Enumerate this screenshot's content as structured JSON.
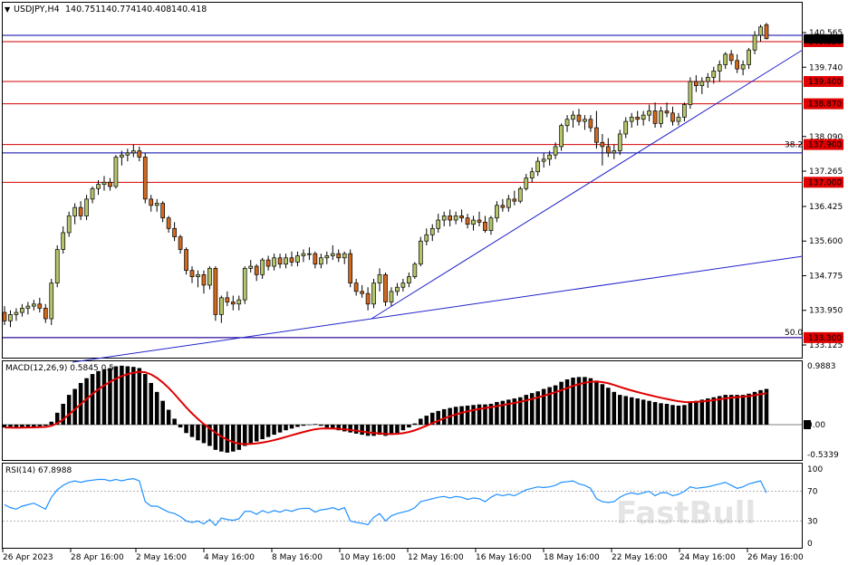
{
  "header": {
    "symbol": "USDJPY,H4",
    "open": "140.751",
    "high": "140.774",
    "low": "140.408",
    "close": "140.418"
  },
  "price_axis": {
    "ticks": [
      "140.565",
      "139.740",
      "138.090",
      "137.265",
      "136.425",
      "135.600",
      "134.775",
      "133.950",
      "133.125"
    ],
    "level_tags": [
      "140.350",
      "139.400",
      "138.870",
      "137.900",
      "137.000",
      "133.300"
    ],
    "fib_labels": [
      "38.2",
      "50.0"
    ]
  },
  "macd": {
    "label": "MACD(12,26,9) 0.5845 0.5",
    "ticks": [
      "0.9883",
      "0.00",
      "-0.5339"
    ]
  },
  "rsi": {
    "label": "RSI(14) 67.8988",
    "ticks": [
      "100",
      "70",
      "30",
      "0"
    ]
  },
  "time_axis": [
    "26 Apr 2023",
    "28 Apr 16:00",
    "2 May 16:00",
    "4 May 16:00",
    "8 May 16:00",
    "10 May 16:00",
    "12 May 16:00",
    "16 May 16:00",
    "18 May 16:00",
    "22 May 16:00",
    "24 May 16:00",
    "26 May 16:00"
  ],
  "watermark": "FastBull",
  "colors": {
    "bull": "#b5c66a",
    "bear": "#d2691e",
    "level_line": "#d40000",
    "level_tag_bg": "#e00000",
    "trend_line": "#2222cc",
    "macd_signal": "#e00000",
    "rsi_line": "#1e90ff"
  },
  "chart_data": {
    "type": "candlestick",
    "y_range": [
      133.125,
      140.85
    ],
    "ohlc": [
      [
        133.9,
        134.05,
        133.6,
        133.7
      ],
      [
        133.7,
        133.95,
        133.55,
        133.85
      ],
      [
        133.85,
        134.0,
        133.7,
        133.9
      ],
      [
        133.9,
        134.1,
        133.8,
        134.0
      ],
      [
        134.0,
        134.15,
        133.85,
        134.05
      ],
      [
        134.05,
        134.2,
        133.95,
        134.1
      ],
      [
        134.1,
        134.25,
        133.9,
        134.0
      ],
      [
        134.0,
        134.1,
        133.65,
        133.75
      ],
      [
        133.75,
        134.7,
        133.6,
        134.6
      ],
      [
        134.6,
        135.5,
        134.5,
        135.4
      ],
      [
        135.4,
        135.95,
        135.3,
        135.8
      ],
      [
        135.8,
        136.3,
        135.7,
        136.2
      ],
      [
        136.2,
        136.5,
        136.0,
        136.4
      ],
      [
        136.4,
        136.55,
        136.1,
        136.2
      ],
      [
        136.2,
        136.7,
        136.1,
        136.6
      ],
      [
        136.6,
        136.9,
        136.5,
        136.85
      ],
      [
        136.85,
        137.05,
        136.7,
        136.95
      ],
      [
        136.95,
        137.15,
        136.8,
        137.0
      ],
      [
        137.0,
        137.1,
        136.8,
        136.9
      ],
      [
        136.9,
        137.65,
        136.85,
        137.6
      ],
      [
        137.6,
        137.75,
        137.4,
        137.65
      ],
      [
        137.65,
        137.8,
        137.5,
        137.7
      ],
      [
        137.7,
        137.9,
        137.6,
        137.75
      ],
      [
        137.75,
        137.85,
        137.5,
        137.6
      ],
      [
        137.6,
        137.7,
        136.5,
        136.6
      ],
      [
        136.6,
        136.7,
        136.3,
        136.45
      ],
      [
        136.45,
        136.6,
        136.3,
        136.5
      ],
      [
        136.5,
        136.55,
        136.05,
        136.15
      ],
      [
        136.15,
        136.2,
        135.8,
        135.9
      ],
      [
        135.9,
        136.05,
        135.6,
        135.7
      ],
      [
        135.7,
        135.75,
        135.3,
        135.4
      ],
      [
        135.4,
        135.45,
        134.8,
        134.9
      ],
      [
        134.9,
        135.0,
        134.6,
        134.75
      ],
      [
        134.75,
        134.9,
        134.5,
        134.8
      ],
      [
        134.8,
        134.9,
        134.35,
        134.55
      ],
      [
        134.55,
        135.0,
        134.45,
        134.95
      ],
      [
        134.95,
        135.0,
        133.7,
        133.85
      ],
      [
        133.85,
        134.3,
        133.65,
        134.25
      ],
      [
        134.25,
        134.4,
        134.05,
        134.15
      ],
      [
        134.15,
        134.3,
        133.95,
        134.1
      ],
      [
        134.1,
        134.3,
        133.95,
        134.2
      ],
      [
        134.2,
        135.0,
        134.1,
        134.95
      ],
      [
        134.95,
        135.15,
        134.85,
        135.0
      ],
      [
        135.0,
        135.05,
        134.65,
        134.8
      ],
      [
        134.8,
        135.2,
        134.7,
        135.15
      ],
      [
        135.15,
        135.25,
        134.9,
        135.0
      ],
      [
        135.0,
        135.3,
        134.9,
        135.2
      ],
      [
        135.2,
        135.3,
        134.95,
        135.05
      ],
      [
        135.05,
        135.3,
        134.95,
        135.2
      ],
      [
        135.2,
        135.35,
        135.0,
        135.1
      ],
      [
        135.1,
        135.35,
        135.0,
        135.25
      ],
      [
        135.25,
        135.4,
        135.1,
        135.3
      ],
      [
        135.3,
        135.45,
        135.15,
        135.3
      ],
      [
        135.3,
        135.35,
        134.95,
        135.05
      ],
      [
        135.05,
        135.3,
        134.95,
        135.2
      ],
      [
        135.2,
        135.35,
        135.05,
        135.25
      ],
      [
        135.25,
        135.5,
        135.15,
        135.3
      ],
      [
        135.3,
        135.4,
        135.1,
        135.2
      ],
      [
        135.2,
        135.35,
        135.05,
        135.3
      ],
      [
        135.3,
        135.4,
        134.5,
        134.6
      ],
      [
        134.6,
        134.7,
        134.3,
        134.4
      ],
      [
        134.4,
        134.55,
        134.25,
        134.35
      ],
      [
        134.35,
        134.5,
        133.95,
        134.1
      ],
      [
        134.1,
        134.7,
        134.0,
        134.6
      ],
      [
        134.6,
        134.95,
        134.4,
        134.8
      ],
      [
        134.8,
        134.85,
        134.05,
        134.15
      ],
      [
        134.15,
        134.5,
        134.05,
        134.4
      ],
      [
        134.4,
        134.6,
        134.3,
        134.5
      ],
      [
        134.5,
        134.7,
        134.4,
        134.6
      ],
      [
        134.6,
        134.85,
        134.5,
        134.75
      ],
      [
        134.75,
        135.1,
        134.7,
        135.05
      ],
      [
        135.05,
        135.7,
        135.0,
        135.6
      ],
      [
        135.6,
        135.9,
        135.5,
        135.75
      ],
      [
        135.75,
        136.0,
        135.6,
        135.9
      ],
      [
        135.9,
        136.25,
        135.8,
        136.1
      ],
      [
        136.1,
        136.3,
        135.95,
        136.2
      ],
      [
        136.2,
        136.35,
        135.95,
        136.1
      ],
      [
        136.1,
        136.3,
        136.0,
        136.2
      ],
      [
        136.2,
        136.35,
        136.05,
        136.15
      ],
      [
        136.15,
        136.25,
        135.9,
        136.0
      ],
      [
        136.0,
        136.2,
        135.85,
        136.1
      ],
      [
        136.1,
        136.3,
        135.95,
        136.05
      ],
      [
        136.05,
        136.2,
        135.8,
        135.85
      ],
      [
        135.85,
        136.2,
        135.75,
        136.15
      ],
      [
        136.15,
        136.55,
        136.05,
        136.45
      ],
      [
        136.45,
        136.6,
        136.3,
        136.4
      ],
      [
        136.4,
        136.7,
        136.3,
        136.6
      ],
      [
        136.6,
        136.8,
        136.45,
        136.55
      ],
      [
        136.55,
        136.9,
        136.5,
        136.85
      ],
      [
        136.85,
        137.2,
        136.8,
        137.1
      ],
      [
        137.1,
        137.35,
        137.0,
        137.25
      ],
      [
        137.25,
        137.6,
        137.15,
        137.5
      ],
      [
        137.5,
        137.7,
        137.35,
        137.55
      ],
      [
        137.55,
        137.75,
        137.4,
        137.65
      ],
      [
        137.65,
        137.95,
        137.55,
        137.85
      ],
      [
        137.85,
        138.4,
        137.75,
        138.35
      ],
      [
        138.35,
        138.6,
        138.2,
        138.5
      ],
      [
        138.5,
        138.7,
        138.3,
        138.6
      ],
      [
        138.6,
        138.75,
        138.35,
        138.45
      ],
      [
        138.45,
        138.6,
        138.25,
        138.5
      ],
      [
        138.5,
        138.6,
        138.2,
        138.3
      ],
      [
        138.3,
        138.7,
        137.8,
        137.95
      ],
      [
        137.95,
        138.15,
        137.4,
        137.85
      ],
      [
        137.85,
        138.05,
        137.6,
        137.7
      ],
      [
        137.7,
        137.9,
        137.55,
        137.75
      ],
      [
        137.75,
        138.25,
        137.65,
        138.15
      ],
      [
        138.15,
        138.55,
        138.05,
        138.45
      ],
      [
        138.45,
        138.65,
        138.3,
        138.55
      ],
      [
        138.55,
        138.7,
        138.35,
        138.5
      ],
      [
        138.5,
        138.7,
        138.35,
        138.6
      ],
      [
        138.6,
        138.85,
        138.45,
        138.7
      ],
      [
        138.7,
        138.9,
        138.3,
        138.4
      ],
      [
        138.4,
        138.8,
        138.3,
        138.7
      ],
      [
        138.7,
        138.9,
        138.55,
        138.65
      ],
      [
        138.65,
        138.8,
        138.35,
        138.45
      ],
      [
        138.45,
        138.65,
        138.35,
        138.55
      ],
      [
        138.55,
        138.9,
        138.45,
        138.85
      ],
      [
        138.85,
        139.5,
        138.75,
        139.4
      ],
      [
        139.4,
        139.55,
        139.15,
        139.3
      ],
      [
        139.3,
        139.5,
        139.1,
        139.4
      ],
      [
        139.4,
        139.6,
        139.25,
        139.5
      ],
      [
        139.5,
        139.75,
        139.35,
        139.65
      ],
      [
        139.65,
        139.9,
        139.4,
        139.8
      ],
      [
        139.8,
        140.1,
        139.7,
        140.05
      ],
      [
        140.05,
        140.15,
        139.8,
        139.9
      ],
      [
        139.9,
        140.05,
        139.6,
        139.7
      ],
      [
        139.7,
        139.9,
        139.55,
        139.8
      ],
      [
        139.8,
        140.2,
        139.7,
        140.15
      ],
      [
        140.15,
        140.6,
        140.05,
        140.5
      ],
      [
        140.5,
        140.75,
        140.35,
        140.7
      ],
      [
        140.75,
        140.8,
        140.4,
        140.42
      ]
    ],
    "levels": [
      140.35,
      139.4,
      138.87,
      137.9,
      137.0,
      133.3
    ],
    "fib_levels": [
      {
        "label": "38.2",
        "value": 137.7
      },
      {
        "label": "50.0",
        "value": 133.3
      }
    ],
    "macd_hist": [
      -0.05,
      -0.06,
      -0.06,
      -0.05,
      -0.04,
      -0.04,
      -0.03,
      -0.02,
      0.05,
      0.2,
      0.35,
      0.5,
      0.6,
      0.7,
      0.78,
      0.85,
      0.9,
      0.93,
      0.95,
      0.98,
      0.99,
      0.98,
      0.97,
      0.95,
      0.85,
      0.7,
      0.55,
      0.4,
      0.25,
      0.1,
      -0.05,
      -0.15,
      -0.22,
      -0.28,
      -0.33,
      -0.38,
      -0.45,
      -0.48,
      -0.5,
      -0.48,
      -0.45,
      -0.38,
      -0.33,
      -0.3,
      -0.26,
      -0.22,
      -0.18,
      -0.14,
      -0.1,
      -0.07,
      -0.04,
      -0.02,
      0.0,
      0.01,
      -0.02,
      -0.05,
      -0.08,
      -0.1,
      -0.12,
      -0.14,
      -0.16,
      -0.18,
      -0.2,
      -0.2,
      -0.18,
      -0.2,
      -0.18,
      -0.15,
      -0.1,
      -0.05,
      0.02,
      0.1,
      0.15,
      0.2,
      0.23,
      0.26,
      0.28,
      0.3,
      0.31,
      0.32,
      0.33,
      0.34,
      0.34,
      0.35,
      0.38,
      0.4,
      0.42,
      0.44,
      0.46,
      0.5,
      0.53,
      0.56,
      0.6,
      0.63,
      0.66,
      0.72,
      0.76,
      0.79,
      0.8,
      0.8,
      0.78,
      0.74,
      0.68,
      0.62,
      0.55,
      0.5,
      0.48,
      0.46,
      0.44,
      0.42,
      0.4,
      0.38,
      0.36,
      0.35,
      0.33,
      0.32,
      0.33,
      0.37,
      0.4,
      0.42,
      0.44,
      0.46,
      0.48,
      0.5,
      0.5,
      0.5,
      0.5,
      0.52,
      0.55,
      0.58,
      0.6
    ],
    "rsi": [
      52,
      48,
      46,
      50,
      52,
      54,
      50,
      46,
      62,
      72,
      78,
      82,
      84,
      82,
      84,
      85,
      86,
      86,
      84,
      86,
      84,
      86,
      87,
      84,
      56,
      50,
      50,
      46,
      42,
      40,
      36,
      30,
      28,
      30,
      26,
      32,
      24,
      34,
      32,
      31,
      33,
      43,
      43,
      39,
      44,
      41,
      44,
      42,
      45,
      43,
      46,
      47,
      47,
      42,
      45,
      46,
      48,
      45,
      48,
      30,
      28,
      27,
      25,
      35,
      40,
      30,
      37,
      40,
      42,
      44,
      48,
      56,
      58,
      60,
      62,
      63,
      61,
      63,
      62,
      59,
      61,
      60,
      56,
      62,
      66,
      64,
      66,
      64,
      68,
      72,
      74,
      76,
      75,
      76,
      78,
      82,
      83,
      84,
      80,
      78,
      74,
      60,
      56,
      55,
      56,
      62,
      66,
      68,
      66,
      68,
      70,
      64,
      68,
      68,
      64,
      66,
      70,
      76,
      74,
      75,
      76,
      78,
      80,
      82,
      78,
      74,
      76,
      80,
      82,
      84,
      68
    ]
  }
}
